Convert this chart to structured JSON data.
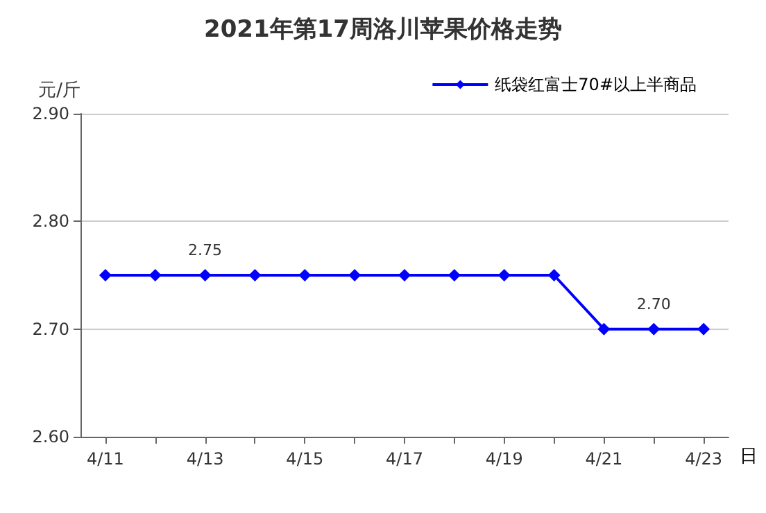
{
  "chart_data": {
    "type": "line",
    "title": "2021年第17周洛川苹果价格走势",
    "ylabel": "元/斤",
    "xlabel": "日",
    "categories": [
      "4/11",
      null,
      "4/13",
      null,
      "4/15",
      null,
      "4/17",
      null,
      "4/19",
      null,
      "4/21",
      null,
      "4/23"
    ],
    "series": [
      {
        "name": "纸袋红富士70#以上半商品",
        "color": "#0000ff",
        "values": [
          2.75,
          2.75,
          2.75,
          2.75,
          2.75,
          2.75,
          2.75,
          2.75,
          2.75,
          2.75,
          2.7,
          2.7,
          2.7
        ],
        "value_labels": [
          null,
          null,
          "2.75",
          null,
          null,
          null,
          null,
          null,
          null,
          null,
          null,
          "2.70",
          null
        ]
      }
    ],
    "ylim": [
      2.6,
      2.9
    ],
    "yticks": [
      {
        "value": 2.6,
        "label": "2.60"
      },
      {
        "value": 2.7,
        "label": "2.70"
      },
      {
        "value": 2.8,
        "label": "2.80"
      },
      {
        "value": 2.9,
        "label": "2.90"
      }
    ],
    "grid": "y",
    "legend": "top right",
    "marker": "diamond",
    "line_style": "solid"
  }
}
